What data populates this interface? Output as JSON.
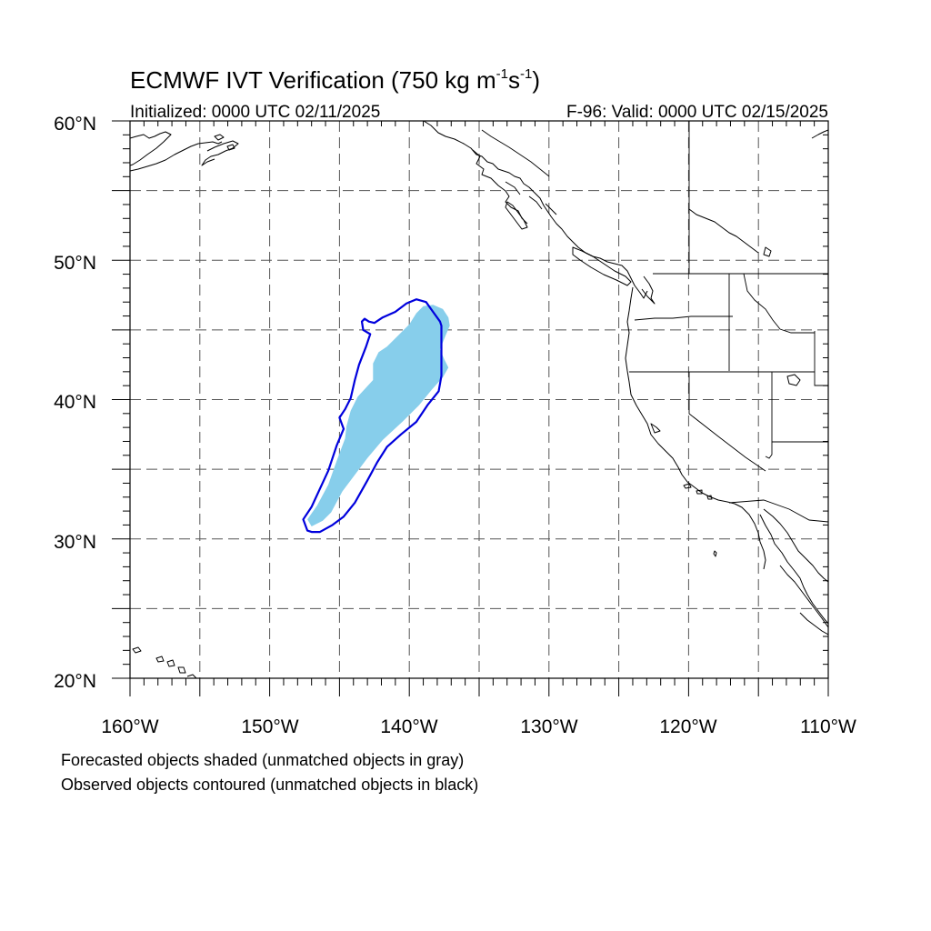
{
  "title": {
    "main": "ECMWF IVT Verification (750 kg m",
    "unit_m_exp": "-1",
    "unit_s": "s",
    "unit_s_exp": "-1",
    "close": ")"
  },
  "initialized": "Initialized: 0000 UTC 02/11/2025",
  "valid": "F-96: Valid: 0000 UTC 02/15/2025",
  "map": {
    "lon_range": [
      -160,
      -110
    ],
    "lat_range": [
      20,
      60
    ],
    "lat_labels": [
      "60°N",
      "50°N",
      "40°N",
      "30°N",
      "20°N"
    ],
    "lon_labels": [
      "160°W",
      "150°W",
      "140°W",
      "130°W",
      "120°W",
      "110°W"
    ],
    "grid_spacing_deg": 5,
    "grid_style": "dashed",
    "forecast_object_color": "#87CEEB",
    "observed_contour_color": "#0000DD",
    "coastline_color": "#000000",
    "forecast_object": {
      "label": "Forecasted object (matched)",
      "points": [
        [
          -147.0,
          30.9
        ],
        [
          -146.2,
          31.3
        ],
        [
          -145.6,
          31.9
        ],
        [
          -144.8,
          33.4
        ],
        [
          -143.9,
          34.6
        ],
        [
          -143.0,
          35.8
        ],
        [
          -141.9,
          37.1
        ],
        [
          -140.5,
          38.4
        ],
        [
          -139.3,
          39.6
        ],
        [
          -138.4,
          40.7
        ],
        [
          -137.6,
          41.6
        ],
        [
          -137.2,
          42.3
        ],
        [
          -137.5,
          42.9
        ],
        [
          -137.8,
          43.6
        ],
        [
          -137.4,
          44.6
        ],
        [
          -137.1,
          45.3
        ],
        [
          -137.2,
          45.9
        ],
        [
          -137.6,
          46.5
        ],
        [
          -138.3,
          46.8
        ],
        [
          -139.0,
          46.7
        ],
        [
          -139.5,
          46.2
        ],
        [
          -140.0,
          45.4
        ],
        [
          -141.0,
          44.4
        ],
        [
          -141.6,
          43.8
        ],
        [
          -142.2,
          43.4
        ],
        [
          -142.6,
          42.6
        ],
        [
          -142.6,
          41.4
        ],
        [
          -143.7,
          40.2
        ],
        [
          -144.2,
          39.2
        ],
        [
          -144.5,
          38.1
        ],
        [
          -144.6,
          37.2
        ],
        [
          -145.2,
          35.6
        ],
        [
          -145.8,
          33.9
        ],
        [
          -146.6,
          32.4
        ],
        [
          -147.3,
          31.4
        ]
      ]
    },
    "observed_object": {
      "label": "Observed object (matched)",
      "points": [
        [
          -147.0,
          30.5
        ],
        [
          -146.4,
          30.5
        ],
        [
          -145.5,
          31.0
        ],
        [
          -144.7,
          31.6
        ],
        [
          -143.9,
          32.6
        ],
        [
          -143.0,
          34.2
        ],
        [
          -142.3,
          35.5
        ],
        [
          -141.6,
          36.6
        ],
        [
          -140.6,
          37.5
        ],
        [
          -139.5,
          38.4
        ],
        [
          -138.7,
          39.6
        ],
        [
          -137.9,
          40.6
        ],
        [
          -137.7,
          41.7
        ],
        [
          -137.7,
          43.1
        ],
        [
          -137.7,
          44.1
        ],
        [
          -137.7,
          45.3
        ],
        [
          -137.8,
          45.6
        ],
        [
          -138.3,
          46.3
        ],
        [
          -138.8,
          47.0
        ],
        [
          -139.5,
          47.2
        ],
        [
          -140.2,
          46.9
        ],
        [
          -141.0,
          46.3
        ],
        [
          -141.9,
          45.9
        ],
        [
          -142.5,
          45.5
        ],
        [
          -142.9,
          45.6
        ],
        [
          -143.2,
          45.8
        ],
        [
          -143.4,
          45.6
        ],
        [
          -143.3,
          45.0
        ],
        [
          -142.8,
          44.7
        ],
        [
          -143.1,
          43.8
        ],
        [
          -143.6,
          42.5
        ],
        [
          -143.9,
          41.4
        ],
        [
          -144.2,
          40.1
        ],
        [
          -144.6,
          39.3
        ],
        [
          -145.0,
          38.7
        ],
        [
          -144.7,
          37.9
        ],
        [
          -145.2,
          36.7
        ],
        [
          -145.8,
          34.9
        ],
        [
          -146.4,
          33.6
        ],
        [
          -147.0,
          32.3
        ],
        [
          -147.6,
          31.4
        ],
        [
          -147.3,
          30.6
        ]
      ]
    }
  },
  "captions": {
    "forecast": "Forecasted objects shaded (unmatched objects in gray)",
    "observed": "Observed objects contoured (unmatched objects in black)"
  }
}
